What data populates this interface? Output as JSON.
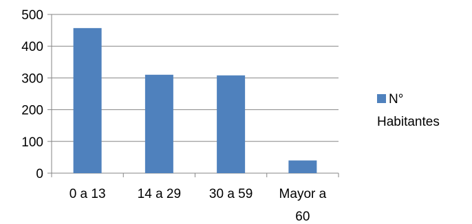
{
  "chart_data": {
    "type": "bar",
    "categories": [
      [
        "0 a 13"
      ],
      [
        "14 a 29"
      ],
      [
        "30 a 59"
      ],
      [
        "Mayor a",
        "60"
      ]
    ],
    "series": [
      {
        "name": [
          "N°",
          "Habitantes"
        ],
        "values": [
          457,
          310,
          308,
          40
        ]
      }
    ],
    "ylim": [
      0,
      500
    ],
    "yticks": [
      0,
      100,
      200,
      300,
      400,
      500
    ],
    "grid": true,
    "legend": "right",
    "colors": {
      "bar": "#4f81bd",
      "grid": "#868686",
      "axis": "#868686"
    }
  }
}
